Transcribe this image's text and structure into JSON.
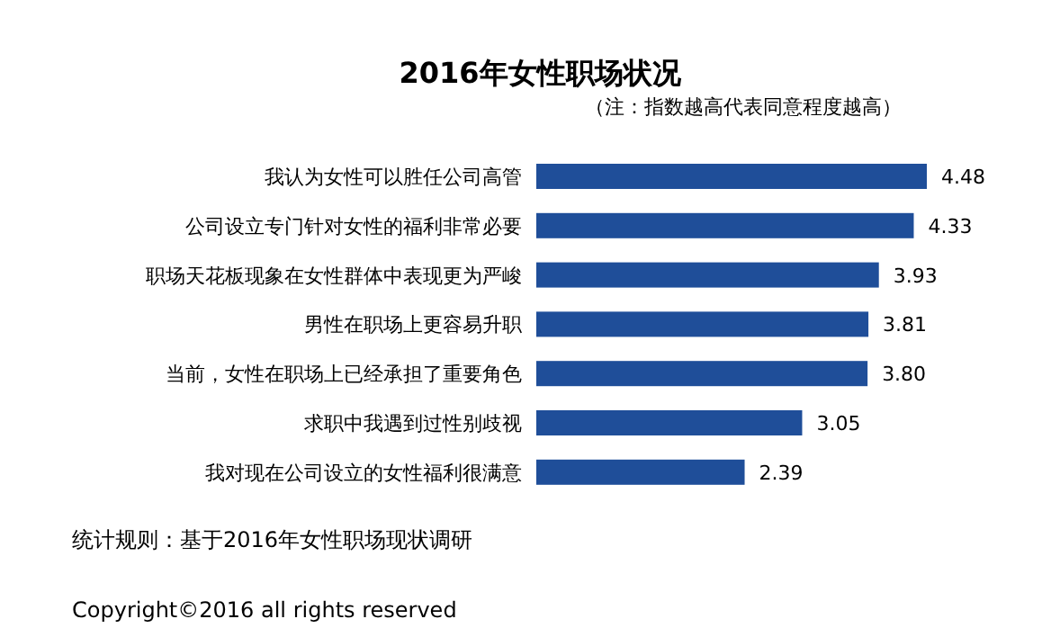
{
  "chart_data": {
    "type": "bar",
    "orientation": "horizontal",
    "title": "2016年女性职场状况",
    "subtitle": "（注：指数越高代表同意程度越高）",
    "categories": [
      "我认为女性可以胜任公司高管",
      "公司设立专门针对女性的福利非常必要",
      "职场天花板现象在女性群体中表现更为严峻",
      "男性在职场上更容易升职",
      "当前，女性在职场上已经承担了重要角色",
      "求职中我遇到过性别歧视",
      "我对现在公司设立的女性福利很满意"
    ],
    "values": [
      4.48,
      4.33,
      3.93,
      3.81,
      3.8,
      3.05,
      2.39
    ],
    "color": "#1f4e99",
    "value_labels": [
      "4.48",
      "4.33",
      "3.93",
      "3.81",
      "3.80",
      "3.05",
      "2.39"
    ],
    "annotations": [
      "统计规则：基于2016年女性职场现状调研",
      "Copyright©2016 all rights reserved"
    ]
  }
}
